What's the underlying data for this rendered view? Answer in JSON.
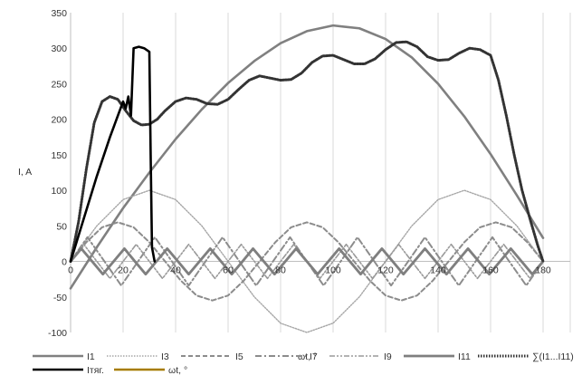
{
  "chart_data": {
    "type": "line",
    "title": "",
    "xlabel": "ωt, °",
    "ylabel": "I, A",
    "xlim": [
      0,
      180
    ],
    "ylim": [
      -100,
      350
    ],
    "x_ticks": [
      0,
      20,
      40,
      60,
      80,
      100,
      120,
      140,
      160,
      180
    ],
    "x_tick_labels": [
      "0",
      "20",
      "40",
      "60",
      "80",
      "100",
      "120",
      "140",
      "160",
      "180"
    ],
    "y_ticks": [
      -100,
      -50,
      0,
      50,
      100,
      150,
      200,
      250,
      300,
      350
    ],
    "y_tick_labels": [
      "-100",
      "-50",
      "0",
      "50",
      "100",
      "150",
      "200",
      "250",
      "300",
      "350"
    ],
    "grid": "vertical",
    "legend_position": "bottom",
    "series": [
      {
        "name": "I1",
        "color": "#808080",
        "style": "solid",
        "width": 2.6,
        "x": [
          0,
          10,
          20,
          30,
          40,
          50,
          60,
          70,
          80,
          90,
          100,
          110,
          120,
          130,
          140,
          150,
          160,
          170,
          180
        ],
        "y": [
          -38,
          20,
          75,
          125,
          172,
          214,
          251,
          282,
          307,
          324,
          332,
          328,
          313,
          287,
          250,
          204,
          151,
          93,
          33
        ]
      },
      {
        "name": "I3",
        "color": "#a6a6a6",
        "style": "dotted",
        "width": 1.4,
        "x": [
          0,
          10,
          20,
          30,
          40,
          50,
          60,
          70,
          80,
          90,
          100,
          110,
          120,
          130,
          140,
          150,
          160,
          170,
          180
        ],
        "y": [
          0,
          50,
          87,
          100,
          87,
          50,
          0,
          -50,
          -87,
          -100,
          -87,
          -50,
          0,
          50,
          87,
          100,
          87,
          50,
          0
        ]
      },
      {
        "name": "I5",
        "color": "#8c8c8c",
        "style": "dashed",
        "width": 2.0,
        "x": [
          0,
          6,
          12,
          18,
          24,
          30,
          36,
          42,
          48,
          54,
          60,
          66,
          72,
          78,
          84,
          90,
          96,
          102,
          108,
          114,
          120,
          126,
          132,
          138,
          144,
          150,
          156,
          162,
          168,
          174,
          180
        ],
        "y": [
          0,
          27,
          48,
          55,
          48,
          27,
          0,
          -27,
          -48,
          -55,
          -48,
          -27,
          0,
          27,
          48,
          55,
          48,
          27,
          0,
          -27,
          -48,
          -55,
          -48,
          -27,
          0,
          27,
          48,
          55,
          48,
          27,
          0
        ]
      },
      {
        "name": "I7",
        "color": "#8c8c8c",
        "style": "dashdot",
        "width": 2.0,
        "x": [
          0,
          6.4,
          12.9,
          19.3,
          25.7,
          32.1,
          38.6,
          45,
          51.4,
          57.9,
          64.3,
          70.7,
          77.1,
          83.6,
          90,
          96.4,
          102.9,
          109.3,
          115.7,
          122.1,
          128.6,
          135,
          141.4,
          147.9,
          154.3,
          160.7,
          167.1,
          173.6,
          180
        ],
        "y": [
          0,
          34,
          0,
          -34,
          0,
          34,
          0,
          -34,
          0,
          34,
          0,
          -34,
          0,
          34,
          0,
          -34,
          0,
          34,
          0,
          -34,
          0,
          34,
          0,
          -34,
          0,
          34,
          0,
          -34,
          0
        ]
      },
      {
        "name": "I9",
        "color": "#9a9a9a",
        "style": "dashdotdot",
        "width": 1.6,
        "x": [
          0,
          5,
          10,
          15,
          20,
          25,
          30,
          35,
          40,
          45,
          50,
          55,
          60,
          65,
          70,
          75,
          80,
          85,
          90,
          95,
          100,
          105,
          110,
          115,
          120,
          125,
          130,
          135,
          140,
          145,
          150,
          155,
          160,
          165,
          170,
          175,
          180
        ],
        "y": [
          0,
          24,
          0,
          -24,
          0,
          24,
          0,
          -24,
          0,
          24,
          0,
          -24,
          0,
          24,
          0,
          -24,
          0,
          24,
          0,
          -24,
          0,
          24,
          0,
          -24,
          0,
          24,
          0,
          -24,
          0,
          24,
          0,
          -24,
          0,
          24,
          0,
          -24,
          0
        ]
      },
      {
        "name": "I11",
        "color": "#7f7f7f",
        "style": "solid",
        "width": 2.8,
        "x": [
          0,
          4.1,
          8.2,
          12.3,
          16.4,
          20.5,
          24.5,
          28.6,
          32.7,
          36.8,
          40.9,
          45,
          49.1,
          53.2,
          57.3,
          61.4,
          65.5,
          69.5,
          73.6,
          77.7,
          81.8,
          85.9,
          90,
          94.1,
          98.2,
          102.3,
          106.4,
          110.5,
          114.5,
          118.6,
          122.7,
          126.8,
          130.9,
          135,
          139.1,
          143.2,
          147.3,
          151.4,
          155.5,
          159.5,
          163.6,
          167.7,
          171.8,
          175.9,
          180
        ],
        "y": [
          0,
          18,
          0,
          -18,
          0,
          18,
          0,
          -18,
          0,
          18,
          0,
          -18,
          0,
          18,
          0,
          -18,
          0,
          18,
          0,
          -18,
          0,
          18,
          0,
          -18,
          0,
          18,
          0,
          -18,
          0,
          18,
          0,
          -18,
          0,
          18,
          0,
          -18,
          0,
          18,
          0,
          -18,
          0,
          18,
          0,
          -18,
          0
        ]
      },
      {
        "name": "∑(I1...I11)",
        "color": "#333333",
        "style": "dotted",
        "width": 3.0,
        "x": [
          0,
          3,
          6,
          9,
          12,
          15,
          18,
          21,
          24,
          27,
          30,
          33,
          36,
          40,
          44,
          48,
          52,
          56,
          60,
          64,
          68,
          72,
          76,
          80,
          84,
          88,
          92,
          96,
          100,
          104,
          108,
          112,
          116,
          120,
          124,
          128,
          132,
          136,
          140,
          144,
          148,
          152,
          156,
          160,
          163,
          166,
          169,
          172,
          175,
          178,
          180
        ],
        "y": [
          0,
          55,
          130,
          195,
          225,
          232,
          228,
          212,
          198,
          192,
          193,
          200,
          212,
          225,
          230,
          228,
          222,
          221,
          228,
          242,
          255,
          261,
          258,
          255,
          256,
          265,
          280,
          289,
          290,
          284,
          278,
          278,
          285,
          298,
          308,
          309,
          302,
          288,
          283,
          284,
          293,
          300,
          298,
          290,
          255,
          205,
          150,
          100,
          60,
          22,
          0
        ]
      },
      {
        "name": "Iтяг.",
        "color": "#000000",
        "style": "solid",
        "width": 2.6,
        "x": [
          0,
          5,
          10,
          15,
          20,
          21,
          22,
          23,
          24,
          26,
          28,
          30,
          30.5,
          31,
          32
        ],
        "y": [
          0,
          60,
          120,
          175,
          225,
          215,
          232,
          205,
          300,
          302,
          300,
          295,
          150,
          20,
          0
        ]
      },
      {
        "name": "ωt, °",
        "color": "#a67c00",
        "style": "solid",
        "width": 2.4,
        "x": [],
        "y": []
      }
    ]
  }
}
